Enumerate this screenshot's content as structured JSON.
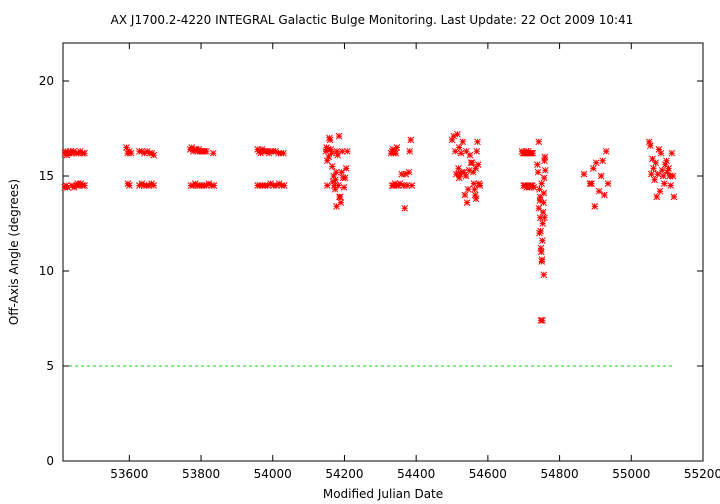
{
  "chart_data": {
    "type": "scatter",
    "title": "AX J1700.2-4220   INTEGRAL Galactic Bulge Monitoring.  Last Update: 22 Oct 2009 10:41",
    "xlabel": "Modified Julian Date",
    "ylabel": "Off-Axis Angle (degrees)",
    "xlim": [
      53415,
      55200
    ],
    "ylim": [
      0,
      22
    ],
    "x_ticks": [
      53600,
      53800,
      54000,
      54200,
      54400,
      54600,
      54800,
      55000,
      55200
    ],
    "y_ticks": [
      0,
      5,
      10,
      15,
      20
    ],
    "grid": false,
    "legend": "none",
    "marker_color": "#ff0000",
    "reference_line": {
      "y": 5,
      "color": "#00dd00",
      "style": "dashed"
    },
    "series": [
      {
        "marker": "asterisk",
        "points": [
          [
            53420,
            16.2
          ],
          [
            53423,
            16.3
          ],
          [
            53426,
            16.1
          ],
          [
            53429,
            16.2
          ],
          [
            53432,
            16.2
          ],
          [
            53436,
            16.3
          ],
          [
            53440,
            16.2
          ],
          [
            53445,
            16.3
          ],
          [
            53452,
            16.2
          ],
          [
            53458,
            16.2
          ],
          [
            53463,
            16.3
          ],
          [
            53470,
            16.2
          ],
          [
            53475,
            16.2
          ],
          [
            53420,
            14.4
          ],
          [
            53424,
            14.5
          ],
          [
            53428,
            14.4
          ],
          [
            53440,
            14.5
          ],
          [
            53446,
            14.4
          ],
          [
            53452,
            14.5
          ],
          [
            53456,
            14.6
          ],
          [
            53460,
            14.5
          ],
          [
            53465,
            14.6
          ],
          [
            53470,
            14.5
          ],
          [
            53475,
            14.5
          ],
          [
            53592,
            16.5
          ],
          [
            53595,
            16.2
          ],
          [
            53600,
            16.3
          ],
          [
            53605,
            16.2
          ],
          [
            53628,
            16.3
          ],
          [
            53635,
            16.3
          ],
          [
            53642,
            16.2
          ],
          [
            53650,
            16.3
          ],
          [
            53657,
            16.2
          ],
          [
            53663,
            16.2
          ],
          [
            53668,
            16.1
          ],
          [
            53596,
            14.6
          ],
          [
            53600,
            14.5
          ],
          [
            53628,
            14.5
          ],
          [
            53635,
            14.6
          ],
          [
            53641,
            14.5
          ],
          [
            53648,
            14.5
          ],
          [
            53655,
            14.5
          ],
          [
            53662,
            14.6
          ],
          [
            53668,
            14.5
          ],
          [
            53770,
            16.4
          ],
          [
            53774,
            16.5
          ],
          [
            53778,
            16.3
          ],
          [
            53782,
            16.4
          ],
          [
            53786,
            16.4
          ],
          [
            53790,
            16.3
          ],
          [
            53794,
            16.4
          ],
          [
            53798,
            16.3
          ],
          [
            53802,
            16.3
          ],
          [
            53806,
            16.3
          ],
          [
            53810,
            16.3
          ],
          [
            53815,
            16.3
          ],
          [
            53834,
            16.2
          ],
          [
            53772,
            14.5
          ],
          [
            53778,
            14.5
          ],
          [
            53784,
            14.6
          ],
          [
            53790,
            14.5
          ],
          [
            53796,
            14.5
          ],
          [
            53802,
            14.5
          ],
          [
            53808,
            14.5
          ],
          [
            53815,
            14.5
          ],
          [
            53822,
            14.6
          ],
          [
            53830,
            14.5
          ],
          [
            53836,
            14.5
          ],
          [
            53958,
            16.4
          ],
          [
            53962,
            16.3
          ],
          [
            53966,
            16.2
          ],
          [
            53970,
            16.4
          ],
          [
            53975,
            16.3
          ],
          [
            53980,
            16.3
          ],
          [
            53985,
            16.3
          ],
          [
            53990,
            16.2
          ],
          [
            53995,
            16.3
          ],
          [
            54000,
            16.3
          ],
          [
            54008,
            16.3
          ],
          [
            54016,
            16.2
          ],
          [
            54023,
            16.2
          ],
          [
            54030,
            16.2
          ],
          [
            53958,
            14.5
          ],
          [
            53964,
            14.5
          ],
          [
            53970,
            14.5
          ],
          [
            53978,
            14.5
          ],
          [
            53986,
            14.5
          ],
          [
            53994,
            14.6
          ],
          [
            54002,
            14.5
          ],
          [
            54010,
            14.5
          ],
          [
            54018,
            14.6
          ],
          [
            54025,
            14.5
          ],
          [
            54032,
            14.5
          ],
          [
            54148,
            16.3
          ],
          [
            54150,
            16.5
          ],
          [
            54152,
            15.8
          ],
          [
            54154,
            16.4
          ],
          [
            54156,
            16.0
          ],
          [
            54158,
            17.0
          ],
          [
            54160,
            16.9
          ],
          [
            54162,
            16.4
          ],
          [
            54164,
            16.2
          ],
          [
            54166,
            15.5
          ],
          [
            54170,
            15.0
          ],
          [
            54172,
            14.5
          ],
          [
            54175,
            14.8
          ],
          [
            54177,
            15.2
          ],
          [
            54179,
            16.3
          ],
          [
            54181,
            16.1
          ],
          [
            54183,
            14.5
          ],
          [
            54185,
            17.1
          ],
          [
            54186,
            13.9
          ],
          [
            54188,
            13.9
          ],
          [
            54190,
            13.6
          ],
          [
            54192,
            15.2
          ],
          [
            54194,
            16.3
          ],
          [
            54196,
            14.9
          ],
          [
            54199,
            14.4
          ],
          [
            54202,
            14.9
          ],
          [
            54205,
            15.4
          ],
          [
            54208,
            16.3
          ],
          [
            54152,
            14.5
          ],
          [
            54168,
            14.7
          ],
          [
            54174,
            14.3
          ],
          [
            54178,
            13.4
          ],
          [
            54330,
            16.2
          ],
          [
            54333,
            16.3
          ],
          [
            54335,
            16.4
          ],
          [
            54337,
            16.2
          ],
          [
            54340,
            16.3
          ],
          [
            54343,
            16.2
          ],
          [
            54346,
            16.5
          ],
          [
            54333,
            14.5
          ],
          [
            54337,
            14.5
          ],
          [
            54341,
            14.6
          ],
          [
            54345,
            14.5
          ],
          [
            54350,
            14.5
          ],
          [
            54355,
            14.6
          ],
          [
            54360,
            15.1
          ],
          [
            54365,
            14.5
          ],
          [
            54368,
            13.3
          ],
          [
            54371,
            15.1
          ],
          [
            54375,
            14.5
          ],
          [
            54380,
            15.2
          ],
          [
            54382,
            16.3
          ],
          [
            54385,
            16.9
          ],
          [
            54388,
            14.5
          ],
          [
            54500,
            16.9
          ],
          [
            54505,
            17.1
          ],
          [
            54509,
            16.3
          ],
          [
            54512,
            15.1
          ],
          [
            54515,
            17.2
          ],
          [
            54518,
            15.4
          ],
          [
            54520,
            14.9
          ],
          [
            54522,
            15.1
          ],
          [
            54525,
            16.2
          ],
          [
            54528,
            15.2
          ],
          [
            54530,
            16.8
          ],
          [
            54533,
            15.2
          ],
          [
            54536,
            14.0
          ],
          [
            54539,
            15.0
          ],
          [
            54542,
            13.6
          ],
          [
            54545,
            14.3
          ],
          [
            54548,
            15.3
          ],
          [
            54550,
            16.1
          ],
          [
            54553,
            15.7
          ],
          [
            54556,
            15.7
          ],
          [
            54559,
            15.2
          ],
          [
            54561,
            14.6
          ],
          [
            54563,
            14.3
          ],
          [
            54565,
            14.0
          ],
          [
            54567,
            13.8
          ],
          [
            54569,
            16.3
          ],
          [
            54571,
            16.8
          ],
          [
            54573,
            15.6
          ],
          [
            54575,
            14.6
          ],
          [
            54578,
            14.5
          ],
          [
            54520,
            16.5
          ],
          [
            54540,
            16.3
          ],
          [
            54566,
            15.4
          ],
          [
            54695,
            16.3
          ],
          [
            54698,
            16.2
          ],
          [
            54701,
            16.2
          ],
          [
            54704,
            16.2
          ],
          [
            54707,
            16.3
          ],
          [
            54710,
            16.2
          ],
          [
            54713,
            16.3
          ],
          [
            54716,
            16.2
          ],
          [
            54719,
            16.2
          ],
          [
            54722,
            16.2
          ],
          [
            54725,
            16.2
          ],
          [
            54700,
            14.5
          ],
          [
            54704,
            14.5
          ],
          [
            54708,
            14.4
          ],
          [
            54712,
            14.5
          ],
          [
            54716,
            14.4
          ],
          [
            54720,
            14.5
          ],
          [
            54724,
            14.5
          ],
          [
            54728,
            14.4
          ],
          [
            54738,
            15.6
          ],
          [
            54740,
            15.2
          ],
          [
            54742,
            13.3
          ],
          [
            54744,
            14.3
          ],
          [
            54745,
            13.7
          ],
          [
            54746,
            12.8
          ],
          [
            54747,
            12.1
          ],
          [
            54748,
            11.2
          ],
          [
            54749,
            11.0
          ],
          [
            54750,
            10.5
          ],
          [
            54751,
            10.6
          ],
          [
            54752,
            11.6
          ],
          [
            54753,
            12.5
          ],
          [
            54754,
            13.1
          ],
          [
            54755,
            13.6
          ],
          [
            54756,
            14.1
          ],
          [
            54757,
            14.9
          ],
          [
            54758,
            15.8
          ],
          [
            54759,
            16.0
          ],
          [
            54760,
            15.3
          ],
          [
            54748,
            7.4
          ],
          [
            54752,
            7.4
          ],
          [
            54742,
            16.8
          ],
          [
            54750,
            14.6
          ],
          [
            54756,
            9.8
          ],
          [
            54744,
            12.0
          ],
          [
            54746,
            13.9
          ],
          [
            54758,
            12.8
          ],
          [
            54868,
            15.1
          ],
          [
            54885,
            14.6
          ],
          [
            54889,
            14.6
          ],
          [
            54894,
            15.4
          ],
          [
            54898,
            13.4
          ],
          [
            54902,
            15.7
          ],
          [
            54910,
            14.2
          ],
          [
            54916,
            15.0
          ],
          [
            54920,
            15.8
          ],
          [
            54925,
            14.0
          ],
          [
            54930,
            16.3
          ],
          [
            54935,
            14.6
          ],
          [
            55050,
            16.8
          ],
          [
            55053,
            16.6
          ],
          [
            55056,
            15.1
          ],
          [
            55059,
            15.9
          ],
          [
            55062,
            15.4
          ],
          [
            55065,
            14.8
          ],
          [
            55068,
            15.7
          ],
          [
            55071,
            13.9
          ],
          [
            55074,
            15.1
          ],
          [
            55077,
            16.4
          ],
          [
            55080,
            14.2
          ],
          [
            55083,
            16.2
          ],
          [
            55086,
            15.3
          ],
          [
            55089,
            15.0
          ],
          [
            55092,
            14.6
          ],
          [
            55095,
            15.6
          ],
          [
            55098,
            15.8
          ],
          [
            55101,
            15.2
          ],
          [
            55104,
            15.4
          ],
          [
            55107,
            15.0
          ],
          [
            55110,
            14.5
          ],
          [
            55113,
            16.2
          ],
          [
            55116,
            15.0
          ],
          [
            55119,
            13.9
          ]
        ]
      }
    ]
  }
}
